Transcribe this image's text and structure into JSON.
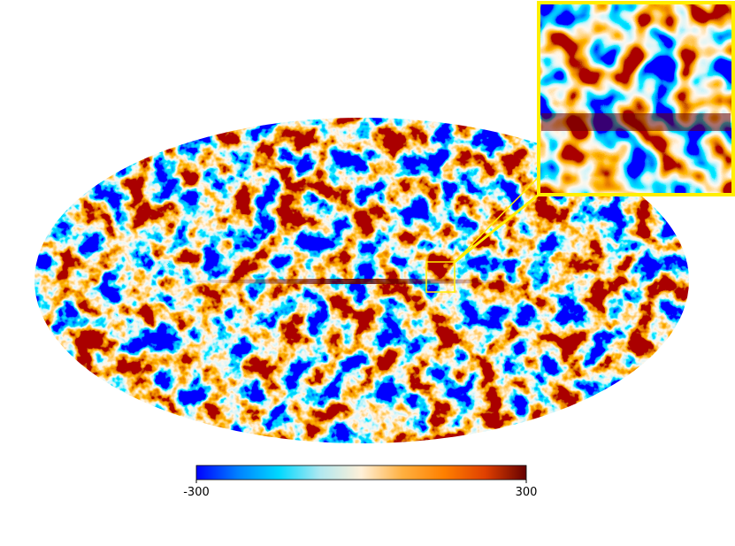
{
  "colorbar": {
    "ticks": [
      -300,
      300
    ]
  }
}
